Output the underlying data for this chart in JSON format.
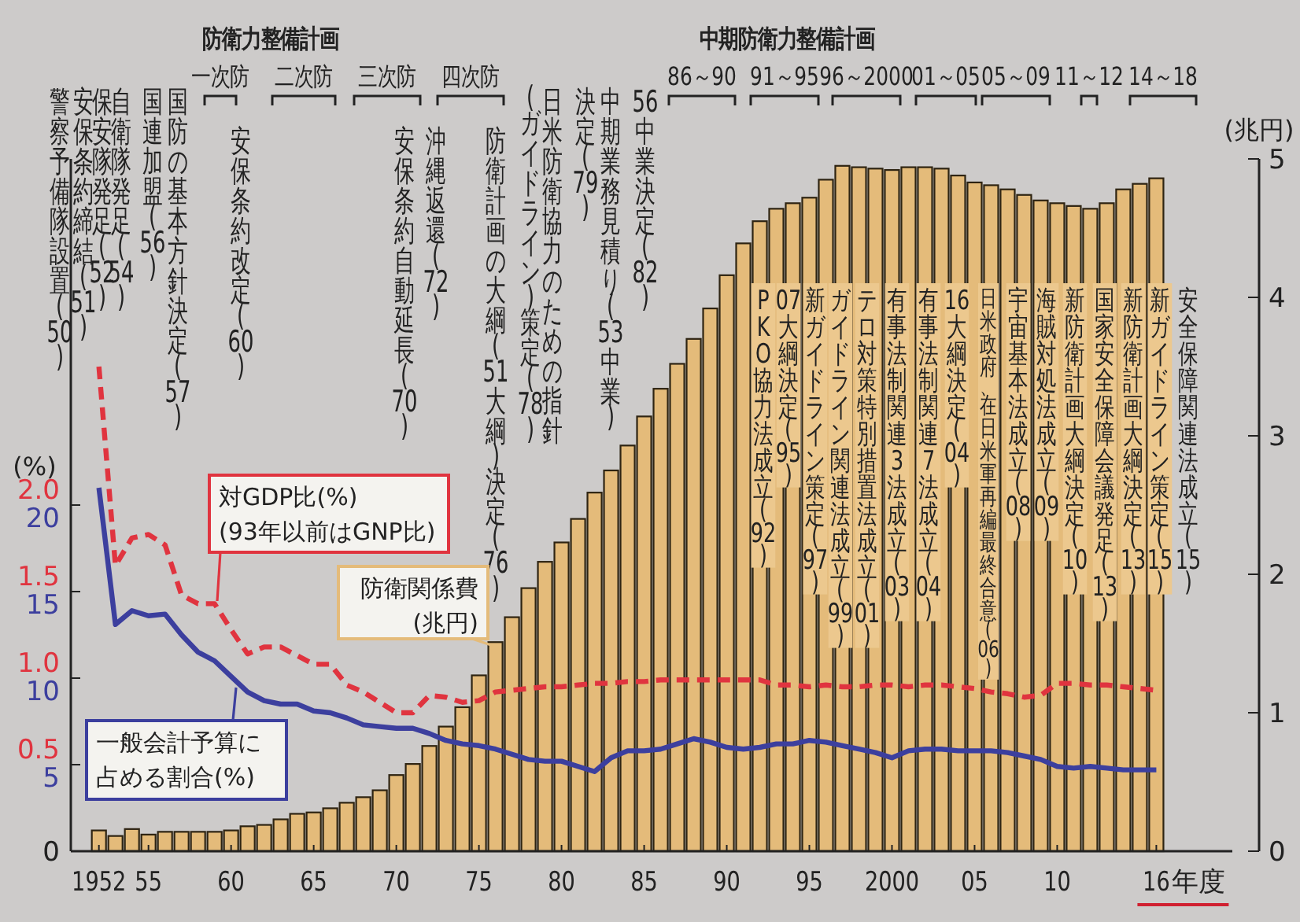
{
  "chart_data": {
    "type": "bar",
    "x": [
      1952,
      1953,
      1954,
      1955,
      1956,
      1957,
      1958,
      1959,
      1960,
      1961,
      1962,
      1963,
      1964,
      1965,
      1966,
      1967,
      1968,
      1969,
      1970,
      1971,
      1972,
      1973,
      1974,
      1975,
      1976,
      1977,
      1978,
      1979,
      1980,
      1981,
      1982,
      1983,
      1984,
      1985,
      1986,
      1987,
      1988,
      1989,
      1990,
      1991,
      1992,
      1993,
      1994,
      1995,
      1996,
      1997,
      1998,
      1999,
      2000,
      2001,
      2002,
      2003,
      2004,
      2005,
      2006,
      2007,
      2008,
      2009,
      2010,
      2011,
      2012,
      2013,
      2014,
      2015,
      2016
    ],
    "series": [
      {
        "name": "防衛関係費(兆円)",
        "color": "#e4bb7a",
        "axis": "y3",
        "values": [
          0.15,
          0.11,
          0.16,
          0.12,
          0.14,
          0.14,
          0.14,
          0.14,
          0.15,
          0.18,
          0.19,
          0.23,
          0.27,
          0.28,
          0.31,
          0.35,
          0.39,
          0.44,
          0.55,
          0.63,
          0.76,
          0.9,
          1.04,
          1.27,
          1.51,
          1.69,
          1.9,
          2.09,
          2.23,
          2.4,
          2.59,
          2.75,
          2.93,
          3.14,
          3.34,
          3.52,
          3.7,
          3.92,
          4.16,
          4.39,
          4.55,
          4.64,
          4.68,
          4.72,
          4.85,
          4.95,
          4.94,
          4.93,
          4.92,
          4.94,
          4.94,
          4.93,
          4.88,
          4.83,
          4.81,
          4.78,
          4.74,
          4.7,
          4.68,
          4.66,
          4.64,
          4.68,
          4.78,
          4.82,
          4.86
        ]
      },
      {
        "name": "対GDP比(%)",
        "color": "#e0343f",
        "type": "line",
        "line_style": "dashed",
        "axis": "y",
        "values": [
          2.8,
          1.65,
          1.81,
          1.83,
          1.77,
          1.48,
          1.43,
          1.43,
          1.28,
          1.14,
          1.18,
          1.18,
          1.13,
          1.08,
          1.08,
          0.96,
          0.92,
          0.86,
          0.8,
          0.8,
          0.9,
          0.89,
          0.86,
          0.87,
          0.92,
          0.93,
          0.94,
          0.95,
          0.95,
          0.96,
          0.97,
          0.97,
          0.98,
          0.98,
          0.99,
          0.99,
          0.99,
          0.99,
          0.99,
          0.99,
          0.99,
          0.96,
          0.96,
          0.95,
          0.96,
          0.95,
          0.95,
          0.96,
          0.96,
          0.95,
          0.96,
          0.96,
          0.95,
          0.94,
          0.92,
          0.91,
          0.89,
          0.9,
          0.97,
          0.97,
          0.96,
          0.96,
          0.95,
          0.94,
          0.93
        ]
      },
      {
        "name": "一般会計予算に占める割合(%)",
        "color": "#3c3f9e",
        "type": "line",
        "axis": "y2",
        "values": [
          21.0,
          13.1,
          13.9,
          13.6,
          13.7,
          12.5,
          11.5,
          11.0,
          10.1,
          9.2,
          8.7,
          8.5,
          8.5,
          8.1,
          8.0,
          7.7,
          7.3,
          7.2,
          7.1,
          7.1,
          6.8,
          6.4,
          6.2,
          6.1,
          5.9,
          5.6,
          5.3,
          5.2,
          5.2,
          4.9,
          4.6,
          5.4,
          5.8,
          5.8,
          5.9,
          6.2,
          6.5,
          6.3,
          6.0,
          5.9,
          6.0,
          6.2,
          6.2,
          6.4,
          6.3,
          6.1,
          5.9,
          5.7,
          5.4,
          5.8,
          5.9,
          5.9,
          5.8,
          5.8,
          5.8,
          5.7,
          5.5,
          5.3,
          4.9,
          4.8,
          4.9,
          4.8,
          4.7,
          4.7,
          4.7
        ]
      }
    ],
    "xlabel": "年度",
    "xlim": [
      1950.3,
      2020.6
    ],
    "xticks": [
      {
        "value": 1952,
        "label": "1952"
      },
      {
        "value": 1955,
        "label": "55"
      },
      {
        "value": 1960,
        "label": "60"
      },
      {
        "value": 1965,
        "label": "65"
      },
      {
        "value": 1970,
        "label": "70"
      },
      {
        "value": 1975,
        "label": "75"
      },
      {
        "value": 1980,
        "label": "80"
      },
      {
        "value": 1985,
        "label": "85"
      },
      {
        "value": 1990,
        "label": "90"
      },
      {
        "value": 1995,
        "label": "95"
      },
      {
        "value": 2000,
        "label": "2000"
      },
      {
        "value": 2005,
        "label": "05"
      },
      {
        "value": 2010,
        "label": "10"
      },
      {
        "value": 2016,
        "label": "16"
      }
    ],
    "ylabel": "(%)",
    "ylim": [
      0,
      4.0
    ],
    "yticks": [
      0,
      0.5,
      {
        "value": 1,
        "label": "1.0"
      },
      1.5,
      {
        "value": 2,
        "label": "2.0"
      }
    ],
    "y2lim": [
      0,
      40
    ],
    "y2ticks": [
      {
        "value": 0,
        "label": null
      },
      5,
      10,
      15,
      20
    ],
    "y3label": "(兆円)",
    "y3lim": [
      0,
      5
    ],
    "y3ticks": [
      0,
      1,
      2,
      3,
      4,
      5
    ],
    "annotations": [
      "(93年以前はGNP比)",
      "防衛力整備計画",
      "中期防衛力整備計画",
      "一次防",
      "二次防",
      "三次防",
      "四次防",
      "86～90",
      "91～95",
      "96～2000",
      "01～05",
      "05～09",
      "11～12",
      "14～18",
      "警察予備隊設置(50)",
      "安保条約締結(51)",
      "保安隊発足(52)",
      "自衛隊発足(54)",
      "国連加盟(56)",
      "国防の基本方針決定(57)",
      "安保条約改定(60)",
      "安保条約自動延長(70)",
      "沖縄返還(72)",
      "防衛計画の大綱(51大綱)決定(76)",
      "日米防衛協力のための指針",
      "(ガイドライン)策定(78)",
      "中期業務見積り(53中業)",
      "決定(79)",
      "56中業決定(82)",
      "PKO協力法成立(92)",
      "07大綱決定(95)",
      "新ガイドライン策定(97)",
      "ガイドライン関連法成立(99)",
      "テロ対策特別措置法成立(01)",
      "有事法制関連3法成立(03)",
      "有事法制関連7法成立(04)",
      "16大綱決定(04)",
      "日米政府、在日米軍再編最終合意(06)",
      "宇宙基本法成立(08)",
      "海賊対処法成立(09)",
      "新防衛計画大綱決定(10)",
      "国家安全保障会議発足(13)",
      "新防衛計画大綱決定(13)",
      "新ガイドライン策定(15)",
      "安全保障関連法成立(15)"
    ]
  }
}
